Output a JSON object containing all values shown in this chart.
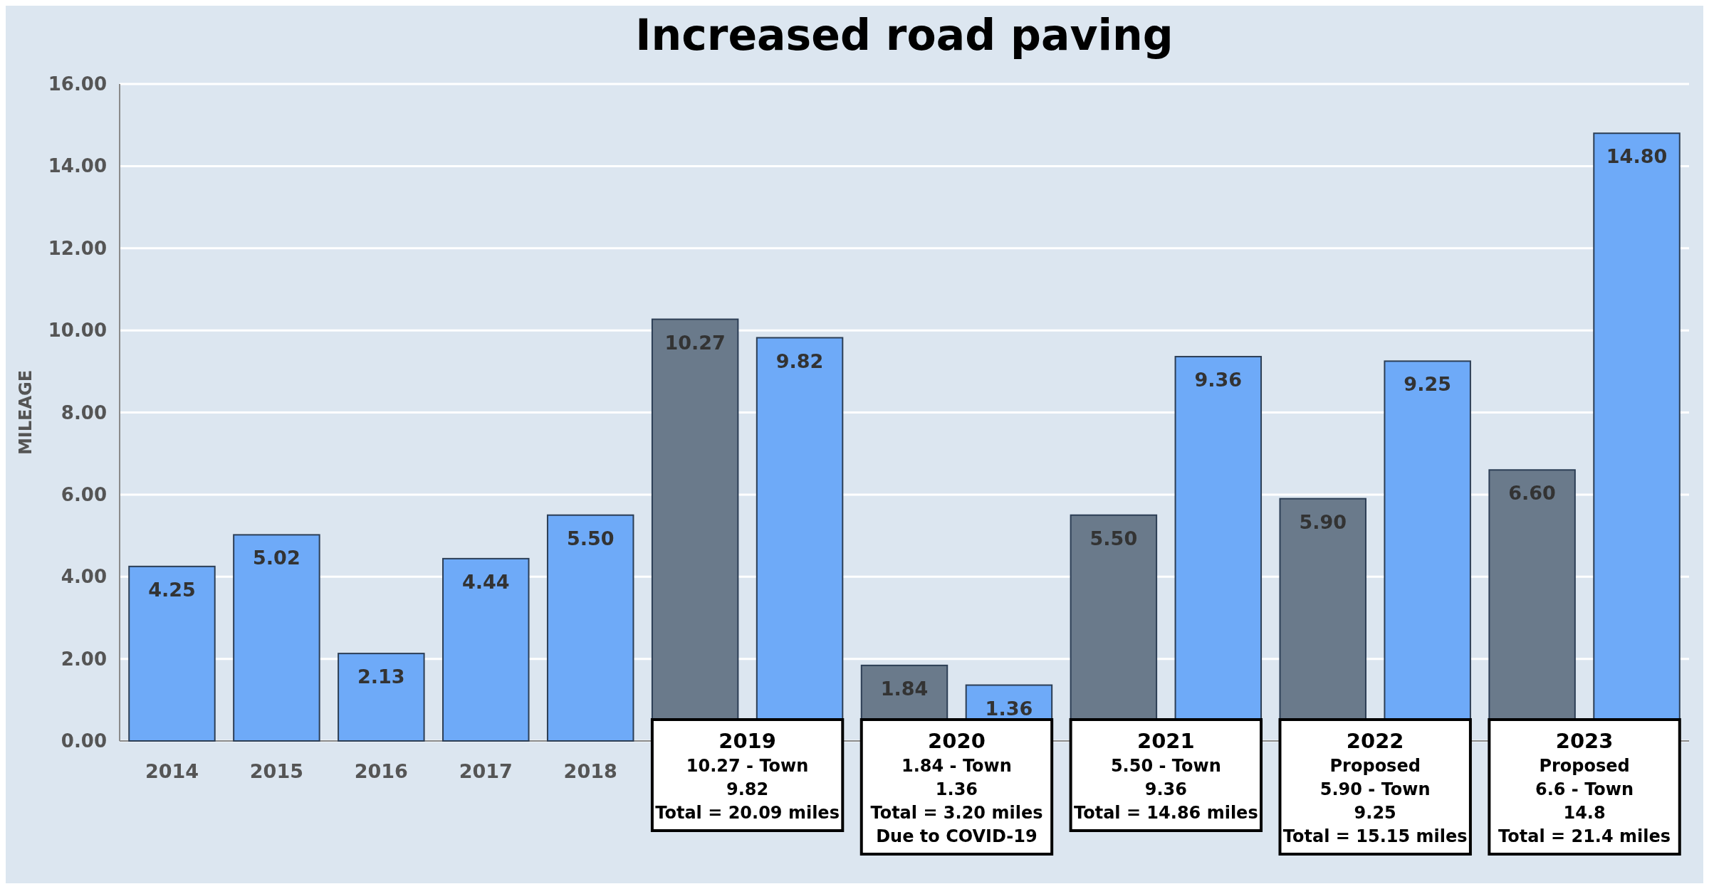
{
  "chart_data": {
    "type": "bar",
    "title": "Increased road paving",
    "ylabel": "MILEAGE",
    "categories": [
      "2014",
      "2015",
      "2016",
      "2017",
      "2018",
      null,
      null,
      null,
      null,
      null,
      null,
      null,
      null,
      null,
      null
    ],
    "values": [
      4.25,
      5.02,
      2.13,
      4.44,
      5.5,
      10.27,
      9.82,
      1.84,
      1.36,
      5.5,
      9.36,
      5.9,
      9.25,
      6.6,
      14.8
    ],
    "colors": [
      "#6eaaf8",
      "#6eaaf8",
      "#6eaaf8",
      "#6eaaf8",
      "#6eaaf8",
      "#6a7a8b",
      "#6eaaf8",
      "#6a7a8b",
      "#6eaaf8",
      "#6a7a8b",
      "#6eaaf8",
      "#6a7a8b",
      "#6eaaf8",
      "#6a7a8b",
      "#6eaaf8"
    ],
    "value_labels": [
      "4.25",
      "5.02",
      "2.13",
      "4.44",
      "5.50",
      "10.27",
      "9.82",
      "1.84",
      "1.36",
      "5.50",
      "9.36",
      "5.90",
      "9.25",
      "6.60",
      "14.80"
    ],
    "ylim": [
      0,
      16
    ],
    "yticks": [
      {
        "value": 0,
        "label": "0.00"
      },
      {
        "value": 2,
        "label": "2.00"
      },
      {
        "value": 4,
        "label": "4.00"
      },
      {
        "value": 6,
        "label": "6.00"
      },
      {
        "value": 8,
        "label": "8.00"
      },
      {
        "value": 10,
        "label": "10.00"
      },
      {
        "value": 12,
        "label": "12.00"
      },
      {
        "value": 14,
        "label": "14.00"
      },
      {
        "value": 16,
        "label": "16.00"
      }
    ],
    "grid": "y",
    "annotations": [
      "2019\n10.27 - Town\n9.82\nTotal = 20.09 miles",
      "2020\n1.84 - Town\n1.36\nTotal = 3.20 miles\nDue to COVID-19",
      "2021\n5.50 - Town\n9.36\nTotal = 14.86 miles",
      "2022\nProposed\n5.90 - Town\n9.25\nTotal = 15.15 miles",
      "2023\nProposed\n6.6 - Town\n14.8\nTotal = 21.4 miles"
    ]
  }
}
